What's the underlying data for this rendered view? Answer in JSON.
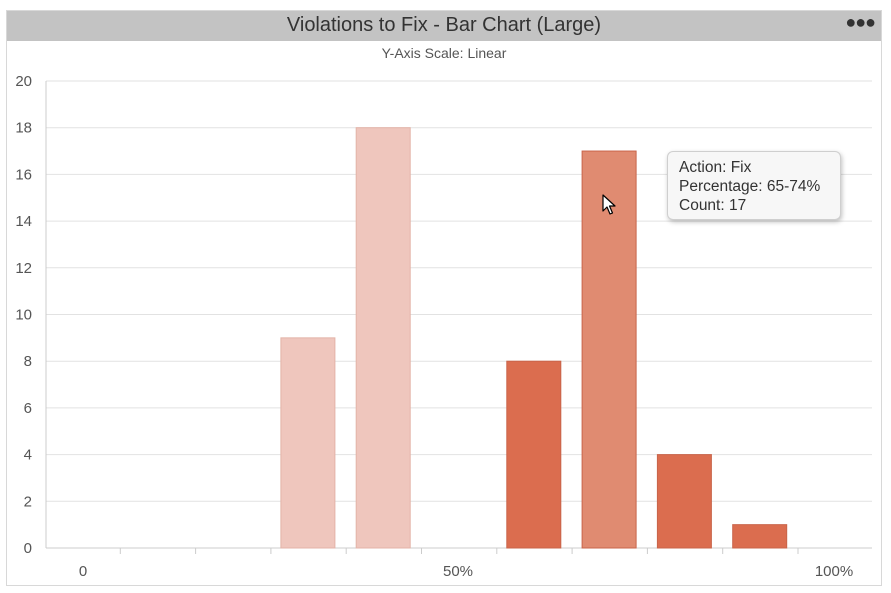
{
  "panel": {
    "title": "Violations to Fix - Bar Chart (Large)",
    "subtitle": "Y-Axis Scale: Linear",
    "menu_icon": "more-horizontal-icon"
  },
  "colors": {
    "light": "#efc6bd",
    "medium": "#e08b71",
    "dark": "#db6d4f",
    "grid": "#e2e2e2",
    "axis_text": "#555555"
  },
  "chart_data": {
    "type": "bar",
    "x_tick_labels": [
      "0",
      "50%",
      "100%"
    ],
    "ylim": [
      0,
      20
    ],
    "yticks": [
      0,
      2,
      4,
      6,
      8,
      10,
      12,
      14,
      16,
      18,
      20
    ],
    "grid": true,
    "bars": [
      {
        "bin": 3,
        "value": 9,
        "shade": "light"
      },
      {
        "bin": 4,
        "value": 18,
        "shade": "light"
      },
      {
        "bin": 6,
        "value": 8,
        "shade": "dark"
      },
      {
        "bin": 7,
        "value": 17,
        "shade": "medium"
      },
      {
        "bin": 8,
        "value": 4,
        "shade": "dark"
      },
      {
        "bin": 9,
        "value": 1,
        "shade": "dark"
      }
    ]
  },
  "tooltip": {
    "line1": "Action: Fix",
    "line2": "Percentage: 65-74%",
    "line3": "Count: 17"
  }
}
